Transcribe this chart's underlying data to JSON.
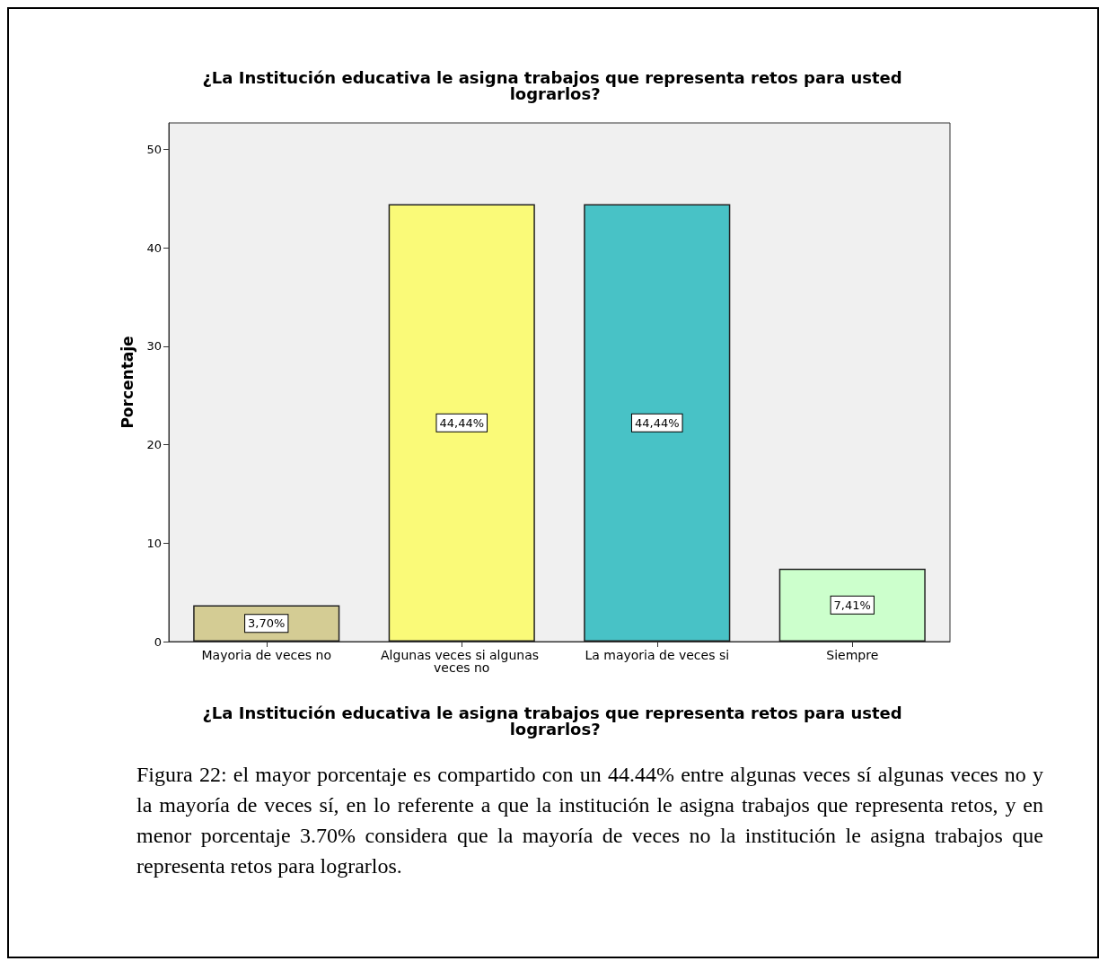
{
  "chart_data": {
    "type": "bar",
    "title": "¿La Institución educativa le asigna trabajos que representa retos para usted lograrlos?",
    "xlabel": "¿La Institución educativa le asigna trabajos que representa retos para usted lograrlos?",
    "ylabel": "Porcentaje",
    "categories": [
      "Mayoria de veces no",
      "Algunas veces si algunas veces no",
      "La mayoria de veces si",
      "Siempre"
    ],
    "values": [
      3.7,
      44.44,
      44.44,
      7.41
    ],
    "colors": [
      "#d4cc94",
      "#fafa78",
      "#48c2c6",
      "#ccffcc"
    ],
    "value_labels": [
      "3,70%",
      "44,44%",
      "44,44%",
      "7,41%"
    ],
    "ylim": [
      0,
      52.7
    ],
    "yticks": [
      0,
      10,
      20,
      30,
      40,
      50
    ],
    "grid": false,
    "annotations": [
      "Figura 22: el mayor porcentaje es compartido con un 44.44% entre algunas veces sí algunas veces no y la mayoría de veces sí, en lo referente a que la institución le asigna trabajos que representa retos, y en menor porcentaje 3.70% considera que la mayoría de veces no la institución le asigna trabajos que representa retos para lograrlos."
    ]
  }
}
